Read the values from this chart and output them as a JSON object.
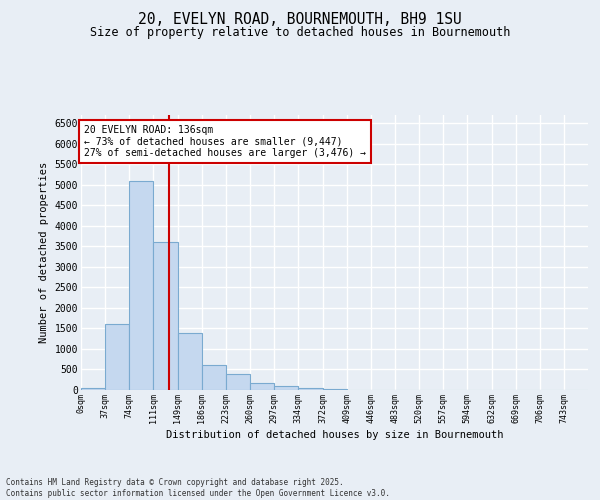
{
  "title": "20, EVELYN ROAD, BOURNEMOUTH, BH9 1SU",
  "subtitle": "Size of property relative to detached houses in Bournemouth",
  "xlabel": "Distribution of detached houses by size in Bournemouth",
  "ylabel": "Number of detached properties",
  "footer_line1": "Contains HM Land Registry data © Crown copyright and database right 2025.",
  "footer_line2": "Contains public sector information licensed under the Open Government Licence v3.0.",
  "bar_edges": [
    0,
    37,
    74,
    111,
    149,
    186,
    223,
    260,
    297,
    334,
    372,
    409,
    446,
    483,
    520,
    557,
    594,
    632,
    669,
    706,
    743,
    780
  ],
  "bar_heights": [
    50,
    1600,
    5100,
    3600,
    1400,
    620,
    400,
    170,
    100,
    50,
    25,
    10,
    5,
    3,
    2,
    1,
    1,
    1,
    1,
    1,
    1
  ],
  "bar_color": "#c5d8ef",
  "bar_edge_color": "#7aaad0",
  "property_size": 136,
  "annotation_title": "20 EVELYN ROAD: 136sqm",
  "annotation_line2": "← 73% of detached houses are smaller (9,447)",
  "annotation_line3": "27% of semi-detached houses are larger (3,476) →",
  "vline_color": "#cc0000",
  "annotation_box_color": "#cc0000",
  "ylim": [
    0,
    6700
  ],
  "yticks": [
    0,
    500,
    1000,
    1500,
    2000,
    2500,
    3000,
    3500,
    4000,
    4500,
    5000,
    5500,
    6000,
    6500
  ],
  "background_color": "#e8eef5",
  "plot_background": "#e8eef5",
  "grid_color": "#ffffff"
}
